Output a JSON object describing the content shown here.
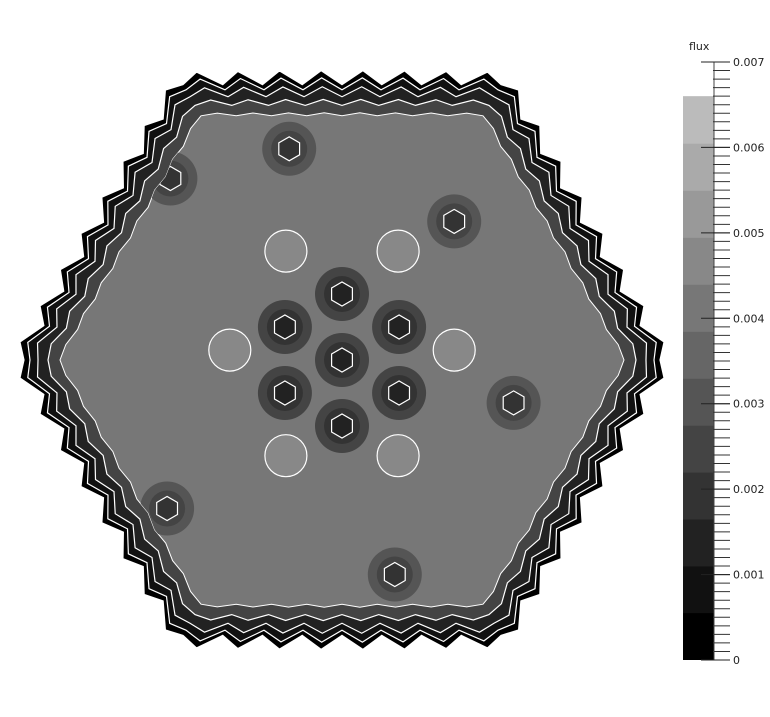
{
  "chart_data": {
    "type": "heatmap",
    "title": "",
    "colorbar": {
      "title": "flux",
      "range": [
        0,
        0.007
      ],
      "tick_labels": [
        "0",
        "0.001",
        "0.002",
        "0.003",
        "0.004",
        "0.005",
        "0.006",
        "0.007"
      ],
      "tick_values": [
        0,
        0.001,
        0.002,
        0.003,
        0.004,
        0.005,
        0.006,
        0.007
      ],
      "bands_top": 0.0066,
      "bands": [
        {
          "lo": 0.0,
          "hi": 0.00055,
          "color": "#000000"
        },
        {
          "lo": 0.00055,
          "hi": 0.0011,
          "color": "#111111"
        },
        {
          "lo": 0.0011,
          "hi": 0.00165,
          "color": "#222222"
        },
        {
          "lo": 0.00165,
          "hi": 0.0022,
          "color": "#333333"
        },
        {
          "lo": 0.0022,
          "hi": 0.00275,
          "color": "#444444"
        },
        {
          "lo": 0.00275,
          "hi": 0.0033,
          "color": "#555555"
        },
        {
          "lo": 0.0033,
          "hi": 0.00385,
          "color": "#666666"
        },
        {
          "lo": 0.00385,
          "hi": 0.0044,
          "color": "#777777"
        },
        {
          "lo": 0.0044,
          "hi": 0.00495,
          "color": "#888888"
        },
        {
          "lo": 0.00495,
          "hi": 0.0055,
          "color": "#999999"
        },
        {
          "lo": 0.0055,
          "hi": 0.00605,
          "color": "#aaaaaa"
        },
        {
          "lo": 0.00605,
          "hi": 0.0066,
          "color": "#bbbbbb"
        }
      ]
    },
    "map": {
      "shape": "hexagonal core with stepped edges",
      "background_flux": 0.004,
      "outer_ring_flux": [
        0.0024,
        0.0014,
        0.0006
      ],
      "hot_rods": [
        {
          "flux": 0.002,
          "halo_flux": 0.0027,
          "x": 0,
          "y": 0
        },
        {
          "flux": 0.002,
          "halo_flux": 0.0027,
          "x": 0,
          "y": 2
        },
        {
          "flux": 0.002,
          "halo_flux": 0.0027,
          "x": 0,
          "y": -2
        },
        {
          "flux": 0.002,
          "halo_flux": 0.0027,
          "x": 1.73,
          "y": 1
        },
        {
          "flux": 0.002,
          "halo_flux": 0.0027,
          "x": -1.73,
          "y": 1
        },
        {
          "flux": 0.002,
          "halo_flux": 0.0027,
          "x": 1.73,
          "y": -1
        },
        {
          "flux": 0.002,
          "halo_flux": 0.0027,
          "x": -1.73,
          "y": -1
        },
        {
          "flux": 0.0022,
          "halo_flux": 0.0028,
          "x": -5.2,
          "y": 5.5
        },
        {
          "flux": 0.0022,
          "halo_flux": 0.0028,
          "x": 3.4,
          "y": 4.2
        },
        {
          "flux": 0.0022,
          "halo_flux": 0.0028,
          "x": -5.3,
          "y": -4.5
        },
        {
          "flux": 0.0022,
          "halo_flux": 0.0028,
          "x": 5.2,
          "y": -1.3
        },
        {
          "flux": 0.0022,
          "halo_flux": 0.0028,
          "x": 1.6,
          "y": -6.5
        },
        {
          "flux": 0.0022,
          "halo_flux": 0.0028,
          "x": -1.6,
          "y": 6.4
        }
      ],
      "water_rods": [
        {
          "flux": 0.0046,
          "x": -1.7,
          "y": 3.3
        },
        {
          "flux": 0.0046,
          "x": 1.7,
          "y": 3.3
        },
        {
          "flux": 0.0046,
          "x": -3.4,
          "y": 0.3
        },
        {
          "flux": 0.0046,
          "x": 3.4,
          "y": 0.3
        },
        {
          "flux": 0.0046,
          "x": -1.7,
          "y": -2.9
        },
        {
          "flux": 0.0046,
          "x": 1.7,
          "y": -2.9
        }
      ]
    }
  }
}
